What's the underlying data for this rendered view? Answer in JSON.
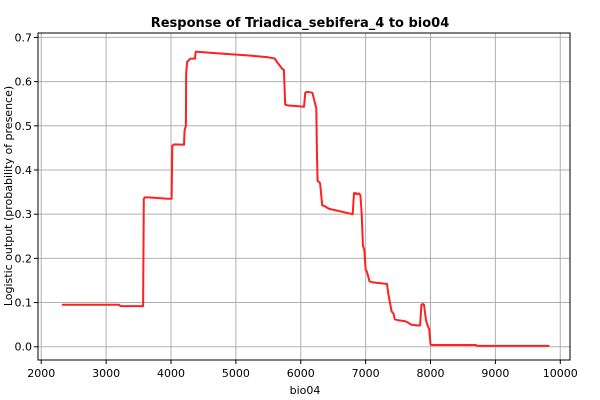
{
  "chart_data": {
    "type": "line",
    "title": "Response of Triadica_sebifera_4 to bio04",
    "xlabel": "bio04",
    "ylabel": "Logistic output (probability of presence)",
    "xlim": [
      1950,
      10150
    ],
    "ylim": [
      -0.03,
      0.71
    ],
    "x_ticks": [
      2000,
      3000,
      4000,
      5000,
      6000,
      7000,
      8000,
      9000,
      10000
    ],
    "y_ticks": [
      0.0,
      0.1,
      0.2,
      0.3,
      0.4,
      0.5,
      0.6,
      0.7
    ],
    "x_tick_labels": [
      "2000",
      "3000",
      "4000",
      "5000",
      "6000",
      "7000",
      "8000",
      "9000",
      "10000"
    ],
    "y_tick_labels": [
      "0.0",
      "0.1",
      "0.2",
      "0.3",
      "0.4",
      "0.5",
      "0.6",
      "0.7"
    ],
    "grid": true,
    "series_color": "#ff2020",
    "series": [
      {
        "x": [
          2330,
          3200,
          3220,
          3570,
          3580,
          3600,
          3650,
          3950,
          4010,
          4020,
          4050,
          4200,
          4210,
          4230,
          4235,
          4245,
          4250,
          4300,
          4370,
          4380,
          4450,
          4700,
          5200,
          5500,
          5600,
          5640,
          5720,
          5740,
          5760,
          5780,
          5800,
          5900,
          6050,
          6070,
          6100,
          6180,
          6230,
          6240,
          6250,
          6260,
          6290,
          6300,
          6330,
          6370,
          6400,
          6440,
          6800,
          6820,
          6830,
          6850,
          6870,
          6900,
          6920,
          6940,
          6960,
          6980,
          7000,
          7020,
          7060,
          7100,
          7330,
          7350,
          7400,
          7430,
          7450,
          7500,
          7600,
          7650,
          7700,
          7800,
          7840,
          7860,
          7880,
          7900,
          7930,
          7950,
          7980,
          8000,
          8020,
          8150,
          8700,
          8720,
          9000,
          9820
        ],
        "y": [
          0.095,
          0.095,
          0.092,
          0.092,
          0.335,
          0.338,
          0.338,
          0.335,
          0.335,
          0.455,
          0.458,
          0.457,
          0.49,
          0.5,
          0.62,
          0.638,
          0.645,
          0.652,
          0.652,
          0.668,
          0.667,
          0.664,
          0.659,
          0.655,
          0.652,
          0.643,
          0.628,
          0.627,
          0.548,
          0.547,
          0.546,
          0.545,
          0.543,
          0.575,
          0.577,
          0.575,
          0.545,
          0.54,
          0.43,
          0.375,
          0.372,
          0.368,
          0.32,
          0.318,
          0.315,
          0.312,
          0.3,
          0.348,
          0.345,
          0.348,
          0.345,
          0.347,
          0.343,
          0.3,
          0.228,
          0.22,
          0.175,
          0.17,
          0.148,
          0.146,
          0.142,
          0.12,
          0.08,
          0.075,
          0.062,
          0.06,
          0.058,
          0.055,
          0.05,
          0.048,
          0.048,
          0.095,
          0.097,
          0.095,
          0.06,
          0.05,
          0.04,
          0.005,
          0.004,
          0.004,
          0.004,
          0.002,
          0.002,
          0.002
        ]
      }
    ]
  }
}
